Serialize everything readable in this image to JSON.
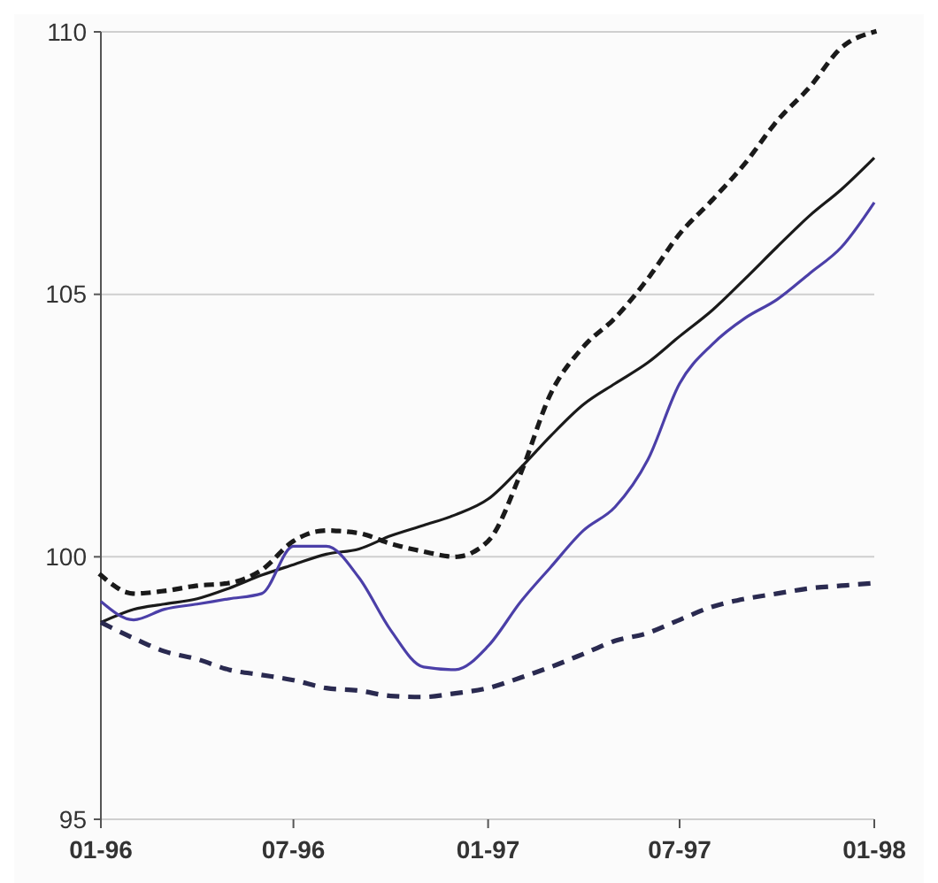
{
  "chart_data": {
    "type": "line",
    "x": [
      "1996-01",
      "1996-02",
      "1996-03",
      "1996-04",
      "1996-05",
      "1996-06",
      "1996-07",
      "1996-08",
      "1996-09",
      "1996-10",
      "1996-11",
      "1996-12",
      "1997-01",
      "1997-02",
      "1997-03",
      "1997-04",
      "1997-05",
      "1997-06",
      "1997-07",
      "1997-08",
      "1997-09",
      "1997-10",
      "1997-11",
      "1997-12",
      "1998-01"
    ],
    "series": [
      {
        "color": "#1a1a1a",
        "line_style": "solid",
        "values": [
          98.75,
          99.0,
          99.1,
          99.2,
          99.4,
          99.65,
          99.85,
          100.05,
          100.15,
          100.4,
          100.6,
          100.8,
          101.1,
          101.7,
          102.3,
          102.9,
          103.3,
          103.7,
          104.2,
          104.7,
          105.3,
          105.9,
          106.5,
          107.0,
          107.6
        ]
      },
      {
        "color": "#4b3fa8",
        "line_style": "solid",
        "values": [
          99.15,
          98.8,
          99.0,
          99.1,
          99.2,
          99.3,
          100.2,
          100.2,
          99.6,
          98.6,
          97.9,
          97.85,
          98.3,
          99.15,
          99.8,
          100.5,
          100.95,
          101.85,
          103.3,
          104.05,
          104.55,
          104.9,
          105.4,
          105.9,
          106.75
        ]
      },
      {
        "color": "#1a1a1a",
        "line_style": "dotted",
        "values": [
          99.65,
          99.3,
          99.35,
          99.45,
          99.5,
          99.75,
          100.3,
          100.5,
          100.45,
          100.25,
          100.1,
          100.0,
          100.3,
          101.6,
          103.1,
          104.0,
          104.55,
          105.3,
          106.15,
          106.8,
          107.5,
          108.3,
          108.95,
          109.7,
          110
        ]
      },
      {
        "color": "#2a2a50",
        "line_style": "dashed",
        "values": [
          98.75,
          98.45,
          98.2,
          98.05,
          97.85,
          97.75,
          97.65,
          97.5,
          97.45,
          97.35,
          97.33,
          97.4,
          97.5,
          97.7,
          97.9,
          98.15,
          98.4,
          98.55,
          98.8,
          99.05,
          99.2,
          99.3,
          99.4,
          99.45,
          99.5
        ]
      }
    ],
    "xlim": [
      "1996-01",
      "1998-01"
    ],
    "xticks": [
      {
        "value": "1996-01",
        "label": "01-96"
      },
      {
        "value": "1996-07",
        "label": "07-96"
      },
      {
        "value": "1997-01",
        "label": "01-97"
      },
      {
        "value": "1997-07",
        "label": "07-97"
      },
      {
        "value": "1998-01",
        "label": "01-98"
      }
    ],
    "ylim": [
      95,
      110
    ],
    "yticks": [
      95,
      100,
      105,
      110
    ],
    "grid": "y"
  }
}
